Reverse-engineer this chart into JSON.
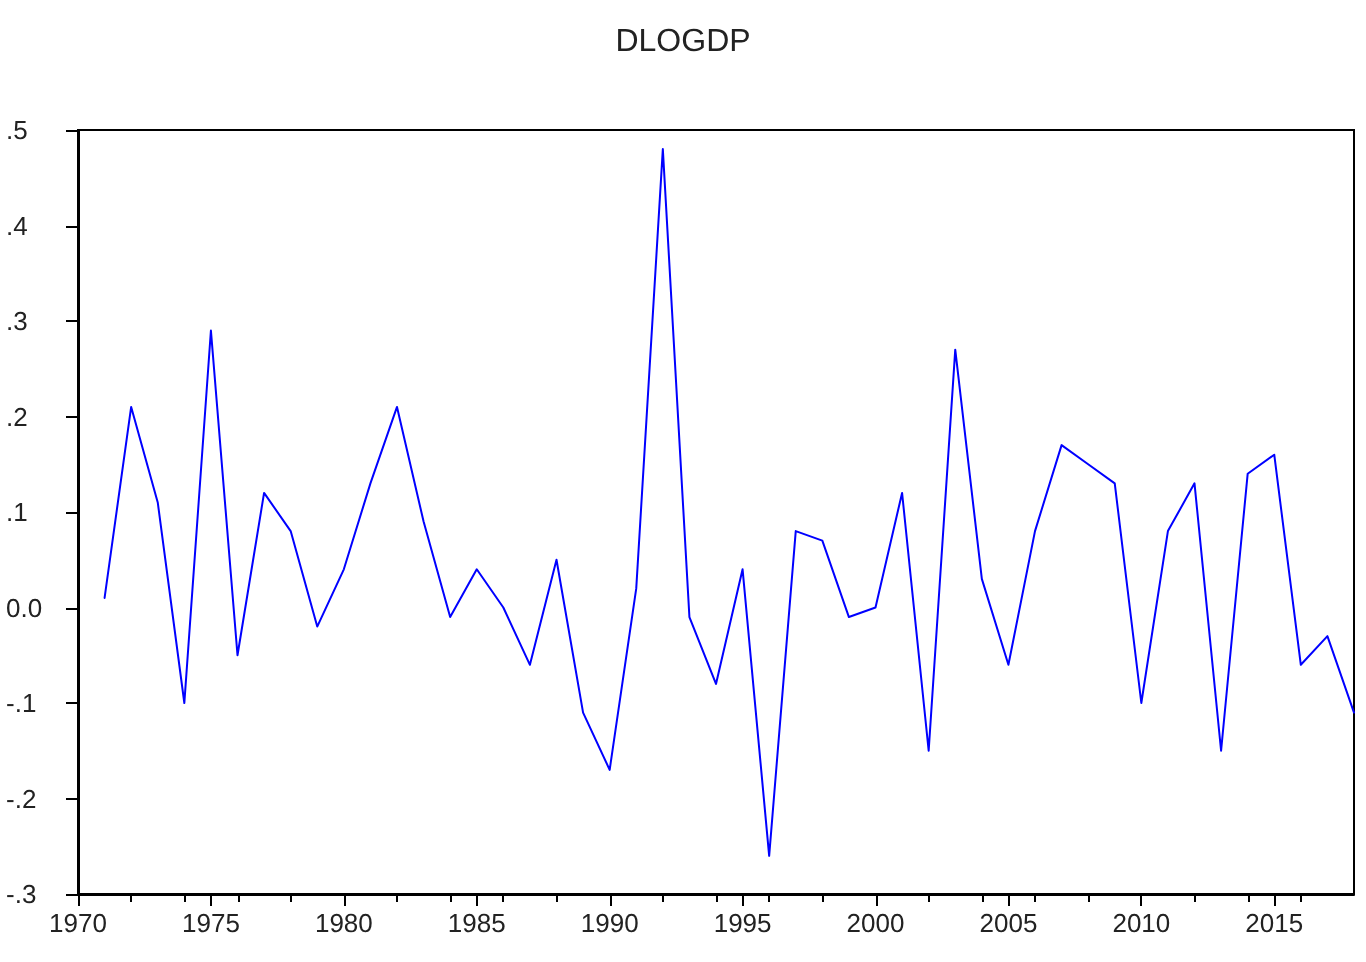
{
  "chart_data": {
    "type": "line",
    "title": "DLOGDP",
    "x": [
      1971,
      1972,
      1973,
      1974,
      1975,
      1976,
      1977,
      1978,
      1979,
      1980,
      1981,
      1982,
      1983,
      1984,
      1985,
      1986,
      1987,
      1988,
      1989,
      1990,
      1991,
      1992,
      1993,
      1994,
      1995,
      1996,
      1997,
      1998,
      1999,
      2000,
      2001,
      2002,
      2003,
      2004,
      2005,
      2006,
      2007,
      2008,
      2009,
      2010,
      2011,
      2012,
      2013,
      2014,
      2015,
      2016,
      2017,
      2018
    ],
    "series": [
      {
        "color": "#0000ff",
        "values": [
          0.01,
          0.21,
          0.11,
          -0.1,
          0.29,
          -0.05,
          0.12,
          0.08,
          -0.02,
          0.04,
          0.13,
          0.21,
          0.09,
          -0.01,
          0.04,
          0.0,
          -0.06,
          0.05,
          -0.11,
          -0.17,
          0.02,
          0.48,
          -0.01,
          -0.08,
          0.04,
          -0.26,
          0.08,
          0.07,
          -0.01,
          0.0,
          0.12,
          -0.15,
          0.27,
          0.03,
          -0.06,
          0.08,
          0.17,
          0.15,
          0.13,
          -0.1,
          0.08,
          0.13,
          -0.15,
          0.14,
          0.16,
          -0.06,
          -0.03,
          -0.11
        ]
      }
    ],
    "xlim": [
      1970,
      2018
    ],
    "xticks": [
      1970,
      1975,
      1980,
      1985,
      1990,
      1995,
      2000,
      2005,
      2010,
      2015
    ],
    "ylim": [
      -0.3,
      0.5
    ],
    "yticks": [
      {
        "value": -0.3,
        "label": "-.3"
      },
      {
        "value": -0.2,
        "label": "-.2"
      },
      {
        "value": -0.1,
        "label": "-.1"
      },
      {
        "value": 0,
        "label": "0.0"
      },
      {
        "value": 0.1,
        "label": ".1"
      },
      {
        "value": 0.2,
        "label": ".2"
      },
      {
        "value": 0.3,
        "label": ".3"
      },
      {
        "value": 0.4,
        "label": ".4"
      },
      {
        "value": 0.5,
        "label": ".5"
      }
    ],
    "grid": false,
    "marker": "none",
    "line_style": "solid"
  }
}
